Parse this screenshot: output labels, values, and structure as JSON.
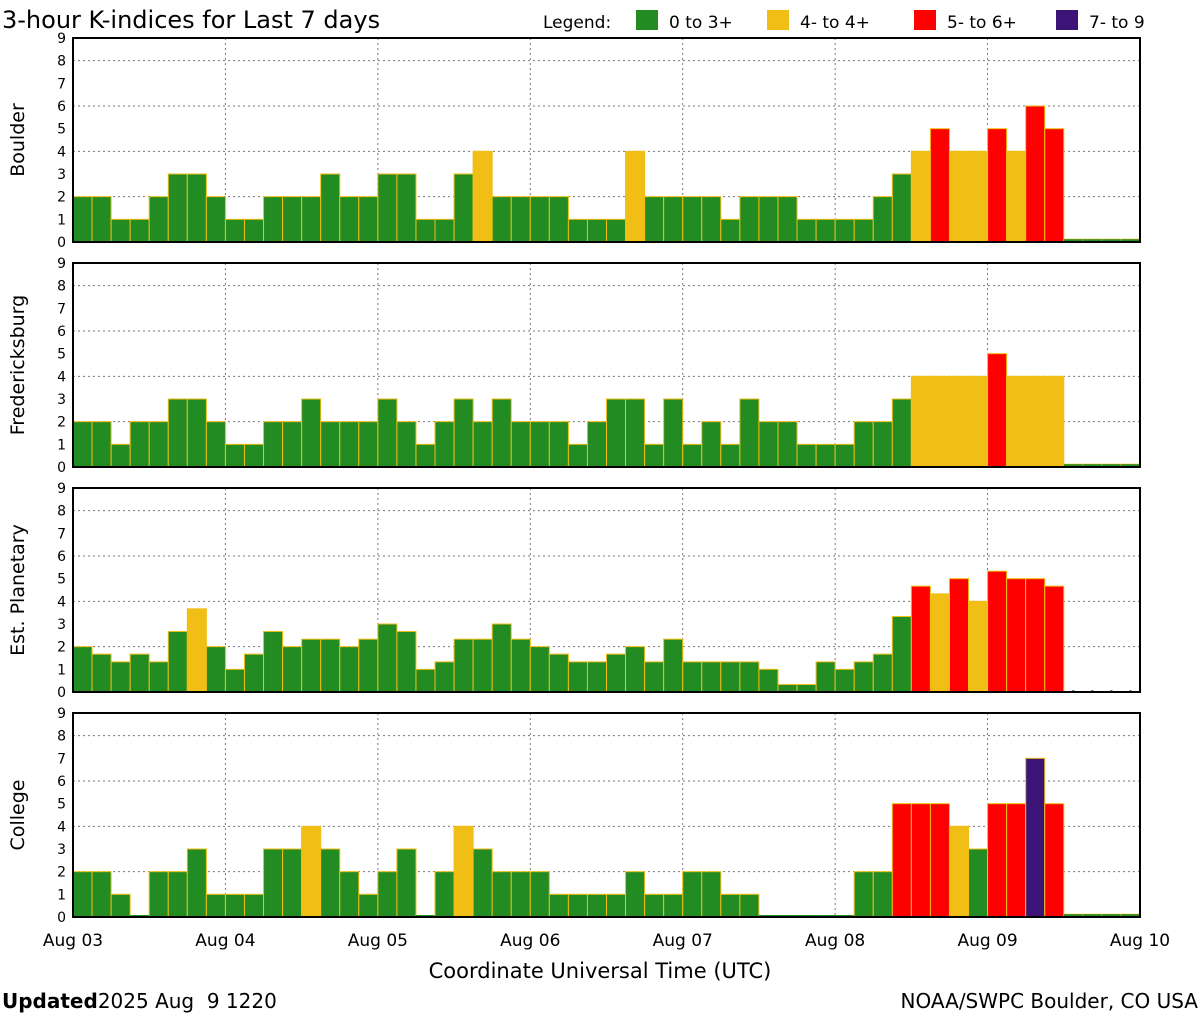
{
  "chart_data": {
    "type": "bar",
    "title": "3-hour K-indices for Last 7 days",
    "legend": {
      "label": "Legend:",
      "items": [
        {
          "label": "0 to 3+",
          "color": "#228b22"
        },
        {
          "label": "4- to 4+",
          "color": "#f0be14"
        },
        {
          "label": "5- to 6+",
          "color": "#ff0000"
        },
        {
          "label": "7- to 9",
          "color": "#3c1478"
        }
      ]
    },
    "xlabel": "Coordinate Universal Time (UTC)",
    "x_ticks": [
      "Aug 03",
      "Aug 04",
      "Aug 05",
      "Aug 06",
      "Aug 07",
      "Aug 08",
      "Aug 09",
      "Aug 10"
    ],
    "y_ticks": [
      "0",
      "1",
      "2",
      "3",
      "4",
      "5",
      "6",
      "7",
      "8",
      "9"
    ],
    "ylim": [
      0,
      9
    ],
    "grid": true,
    "bins_per_day": 8,
    "series": [
      {
        "name": "Boulder",
        "values": [
          2,
          2,
          1,
          1,
          2,
          3,
          3,
          2,
          1,
          1,
          2,
          2,
          2,
          3,
          2,
          2,
          3,
          3,
          1,
          1,
          3,
          4,
          2,
          2,
          2,
          2,
          1,
          1,
          1,
          4,
          2,
          2,
          2,
          2,
          1,
          2,
          2,
          2,
          1,
          1,
          1,
          1,
          2,
          3,
          4,
          5,
          4,
          4,
          5,
          4,
          6,
          5
        ]
      },
      {
        "name": "Fredericksburg",
        "values": [
          2,
          2,
          1,
          2,
          2,
          3,
          3,
          2,
          1,
          1,
          2,
          2,
          3,
          2,
          2,
          2,
          3,
          2,
          1,
          2,
          3,
          2,
          3,
          2,
          2,
          2,
          1,
          2,
          3,
          3,
          1,
          3,
          1,
          2,
          1,
          3,
          2,
          2,
          1,
          1,
          1,
          2,
          2,
          3,
          4,
          4,
          4,
          4,
          5,
          4,
          4,
          4
        ]
      },
      {
        "name": "Est. Planetary",
        "values": [
          2,
          1.67,
          1.33,
          1.67,
          1.33,
          2.67,
          3.67,
          2,
          1,
          1.67,
          2.67,
          2,
          2.33,
          2.33,
          2,
          2.33,
          3,
          2.67,
          1,
          1.33,
          2.33,
          2.33,
          3,
          2.33,
          2,
          1.67,
          1.33,
          1.33,
          1.67,
          2,
          1.33,
          2.33,
          1.33,
          1.33,
          1.33,
          1.33,
          1,
          0.33,
          0.33,
          1.33,
          1,
          1.33,
          1.67,
          3.33,
          4.67,
          4.33,
          5,
          4,
          5.33,
          5,
          5,
          4.67
        ]
      },
      {
        "name": "College",
        "values": [
          2,
          2,
          1,
          0,
          2,
          2,
          3,
          1,
          1,
          1,
          3,
          3,
          4,
          3,
          2,
          1,
          2,
          3,
          0,
          2,
          4,
          3,
          2,
          2,
          2,
          1,
          1,
          1,
          1,
          2,
          1,
          1,
          2,
          2,
          1,
          1,
          0,
          0,
          0,
          0,
          0,
          2,
          2,
          5,
          5,
          5,
          4,
          3,
          5,
          5,
          7,
          5
        ]
      }
    ]
  },
  "footer": {
    "updated_label": "Updated",
    "updated_value": "2025 Aug  9 1220",
    "credit": "NOAA/SWPC Boulder, CO USA"
  }
}
